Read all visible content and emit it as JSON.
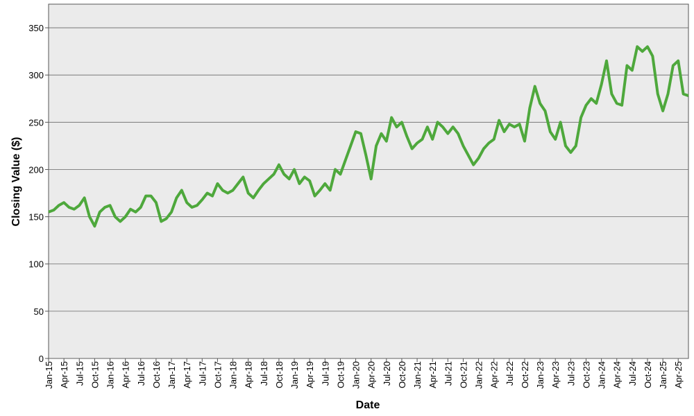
{
  "chart_data": {
    "type": "line",
    "xlabel": "Date",
    "ylabel": "Closing Value ($)",
    "x": [
      "Jan-15",
      "Feb-15",
      "Mar-15",
      "Apr-15",
      "May-15",
      "Jun-15",
      "Jul-15",
      "Aug-15",
      "Sep-15",
      "Oct-15",
      "Nov-15",
      "Dec-15",
      "Jan-16",
      "Feb-16",
      "Mar-16",
      "Apr-16",
      "May-16",
      "Jun-16",
      "Jul-16",
      "Aug-16",
      "Sep-16",
      "Oct-16",
      "Nov-16",
      "Dec-16",
      "Jan-17",
      "Feb-17",
      "Mar-17",
      "Apr-17",
      "May-17",
      "Jun-17",
      "Jul-17",
      "Aug-17",
      "Sep-17",
      "Oct-17",
      "Nov-17",
      "Dec-17",
      "Jan-18",
      "Feb-18",
      "Mar-18",
      "Apr-18",
      "May-18",
      "Jun-18",
      "Jul-18",
      "Aug-18",
      "Sep-18",
      "Oct-18",
      "Nov-18",
      "Dec-18",
      "Jan-19",
      "Feb-19",
      "Mar-19",
      "Apr-19",
      "May-19",
      "Jun-19",
      "Jul-19",
      "Aug-19",
      "Sep-19",
      "Oct-19",
      "Nov-19",
      "Dec-19",
      "Jan-20",
      "Feb-20",
      "Mar-20",
      "Apr-20",
      "May-20",
      "Jun-20",
      "Jul-20",
      "Aug-20",
      "Sep-20",
      "Oct-20",
      "Nov-20",
      "Dec-20",
      "Jan-21",
      "Feb-21",
      "Mar-21",
      "Apr-21",
      "May-21",
      "Jun-21",
      "Jul-21",
      "Aug-21",
      "Sep-21",
      "Oct-21",
      "Nov-21",
      "Dec-21",
      "Jan-22",
      "Feb-22",
      "Mar-22",
      "Apr-22",
      "May-22",
      "Jun-22",
      "Jul-22",
      "Aug-22",
      "Sep-22",
      "Oct-22",
      "Nov-22",
      "Dec-22",
      "Jan-23",
      "Feb-23",
      "Mar-23",
      "Apr-23",
      "May-23",
      "Jun-23",
      "Jul-23",
      "Aug-23",
      "Sep-23",
      "Oct-23",
      "Nov-23",
      "Dec-23",
      "Jan-24",
      "Feb-24",
      "Mar-24",
      "Apr-24",
      "May-24",
      "Jun-24",
      "Jul-24",
      "Aug-24",
      "Sep-24",
      "Oct-24",
      "Nov-24",
      "Dec-24",
      "Jan-25",
      "Feb-25",
      "Mar-25",
      "Apr-25",
      "May-25",
      "Jun-25"
    ],
    "series": [
      {
        "name": "Closing Value",
        "color": "#4ea83c",
        "values": [
          155,
          157,
          162,
          165,
          160,
          158,
          162,
          170,
          150,
          140,
          155,
          160,
          162,
          150,
          145,
          150,
          158,
          155,
          160,
          172,
          172,
          165,
          145,
          148,
          155,
          170,
          178,
          165,
          160,
          162,
          168,
          175,
          172,
          185,
          178,
          175,
          178,
          185,
          192,
          175,
          170,
          178,
          185,
          190,
          195,
          205,
          195,
          190,
          200,
          185,
          192,
          188,
          172,
          178,
          185,
          178,
          200,
          195,
          210,
          225,
          240,
          238,
          215,
          190,
          225,
          238,
          230,
          255,
          245,
          250,
          235,
          222,
          228,
          232,
          245,
          232,
          250,
          245,
          238,
          245,
          238,
          225,
          215,
          205,
          212,
          222,
          228,
          232,
          252,
          240,
          248,
          245,
          248,
          230,
          265,
          288,
          270,
          262,
          240,
          232,
          250,
          225,
          218,
          225,
          255,
          268,
          275,
          270,
          290,
          315,
          280,
          270,
          268,
          310,
          305,
          330,
          325,
          330,
          320,
          280,
          262,
          280,
          310,
          315,
          280,
          278
        ]
      }
    ],
    "xticks": [
      "Jan-15",
      "Apr-15",
      "Jul-15",
      "Oct-15",
      "Jan-16",
      "Apr-16",
      "Jul-16",
      "Oct-16",
      "Jan-17",
      "Apr-17",
      "Jul-17",
      "Oct-17",
      "Jan-18",
      "Apr-18",
      "Jul-18",
      "Oct-18",
      "Jan-19",
      "Apr-19",
      "Jul-19",
      "Oct-19",
      "Jan-20",
      "Apr-20",
      "Jul-20",
      "Oct-20",
      "Jan-21",
      "Apr-21",
      "Jul-21",
      "Oct-21",
      "Jan-22",
      "Apr-22",
      "Jul-22",
      "Oct-22",
      "Jan-23",
      "Apr-23",
      "Jul-23",
      "Oct-23",
      "Jan-24",
      "Apr-24",
      "Jul-24",
      "Oct-24",
      "Jan-25",
      "Apr-25"
    ],
    "ylim": [
      0,
      375
    ],
    "yticks": [
      0,
      50,
      100,
      150,
      200,
      250,
      300,
      350
    ],
    "grid": true
  }
}
